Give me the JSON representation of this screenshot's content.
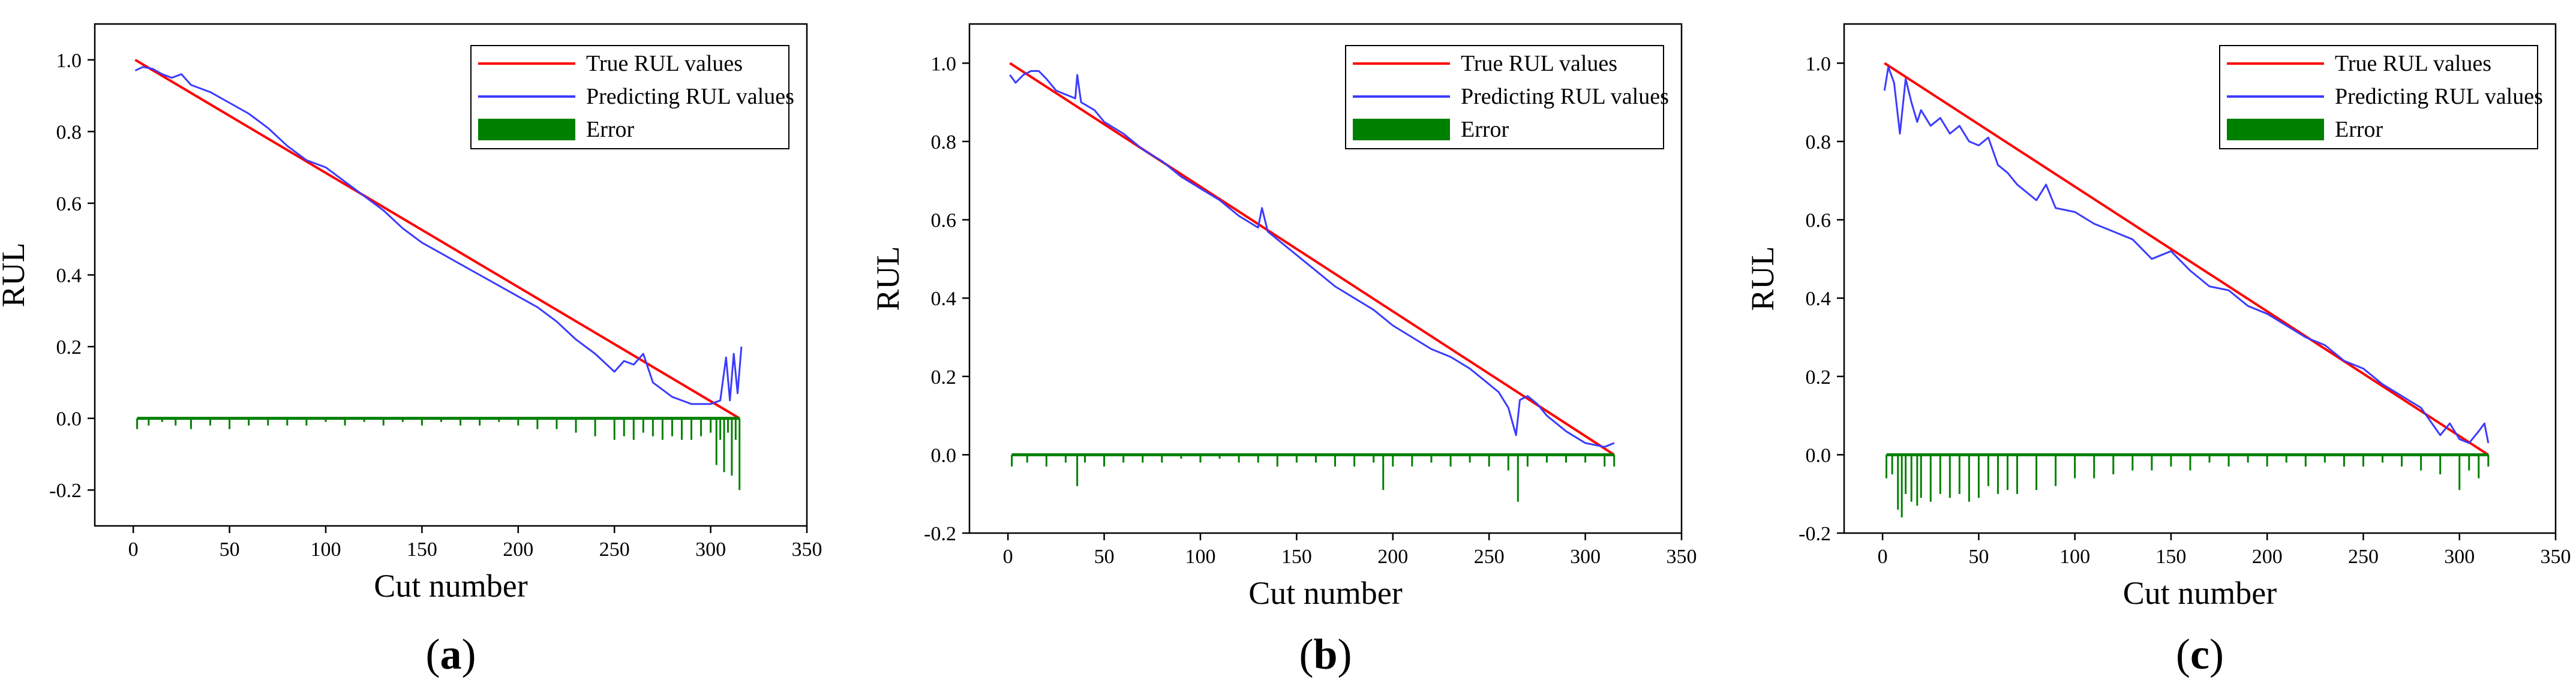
{
  "chart_data": [
    {
      "panel_label": "a",
      "type": "line",
      "xlabel": "Cut number",
      "ylabel": "RUL",
      "xlim": [
        -20,
        350
      ],
      "ylim": [
        -0.3,
        1.1
      ],
      "xticks": [
        0,
        50,
        100,
        150,
        200,
        250,
        300,
        350
      ],
      "yticks": [
        -0.2,
        0.0,
        0.2,
        0.4,
        0.6,
        0.8,
        1.0
      ],
      "grid": false,
      "legend_position": "top-right",
      "series": [
        {
          "name": "True RUL values",
          "kind": "line",
          "color": "#ff0000",
          "x": [
            1,
            315
          ],
          "y": [
            1.0,
            0.0
          ]
        },
        {
          "name": "Predicting RUL values",
          "kind": "line",
          "color": "#3b3bff",
          "x": [
            1,
            5,
            10,
            15,
            20,
            25,
            30,
            40,
            50,
            60,
            70,
            80,
            90,
            100,
            110,
            120,
            130,
            140,
            150,
            160,
            170,
            180,
            190,
            200,
            210,
            220,
            230,
            240,
            250,
            255,
            260,
            265,
            270,
            275,
            280,
            290,
            300,
            305,
            308,
            310,
            312,
            314,
            316
          ],
          "y": [
            0.97,
            0.98,
            0.975,
            0.96,
            0.95,
            0.96,
            0.93,
            0.91,
            0.88,
            0.85,
            0.81,
            0.76,
            0.72,
            0.7,
            0.66,
            0.62,
            0.58,
            0.53,
            0.49,
            0.46,
            0.43,
            0.4,
            0.37,
            0.34,
            0.31,
            0.27,
            0.22,
            0.18,
            0.13,
            0.16,
            0.15,
            0.18,
            0.1,
            0.08,
            0.06,
            0.04,
            0.04,
            0.05,
            0.17,
            0.05,
            0.18,
            0.07,
            0.2
          ]
        },
        {
          "name": "Error",
          "kind": "bar",
          "color": "#008000",
          "x": [
            2,
            8,
            15,
            22,
            30,
            40,
            50,
            60,
            70,
            80,
            90,
            100,
            110,
            120,
            130,
            140,
            150,
            160,
            170,
            180,
            190,
            200,
            210,
            220,
            230,
            240,
            250,
            255,
            260,
            265,
            270,
            275,
            280,
            285,
            290,
            295,
            300,
            303,
            305,
            307,
            309,
            311,
            313,
            315
          ],
          "y": [
            -0.03,
            -0.02,
            -0.01,
            -0.02,
            -0.03,
            -0.02,
            -0.03,
            -0.02,
            -0.02,
            -0.02,
            -0.02,
            -0.01,
            -0.02,
            -0.01,
            -0.02,
            -0.01,
            -0.02,
            -0.01,
            -0.02,
            -0.02,
            -0.01,
            -0.02,
            -0.03,
            -0.03,
            -0.04,
            -0.05,
            -0.06,
            -0.05,
            -0.06,
            -0.04,
            -0.05,
            -0.06,
            -0.05,
            -0.06,
            -0.06,
            -0.05,
            -0.04,
            -0.13,
            -0.06,
            -0.15,
            -0.04,
            -0.16,
            -0.06,
            -0.2
          ]
        }
      ]
    },
    {
      "panel_label": "b",
      "type": "line",
      "xlabel": "Cut number",
      "ylabel": "RUL",
      "xlim": [
        -20,
        350
      ],
      "ylim": [
        -0.2,
        1.1
      ],
      "xticks": [
        0,
        50,
        100,
        150,
        200,
        250,
        300,
        350
      ],
      "yticks": [
        -0.2,
        0.0,
        0.2,
        0.4,
        0.6,
        0.8,
        1.0
      ],
      "grid": false,
      "legend_position": "top-right",
      "series": [
        {
          "name": "True RUL values",
          "kind": "line",
          "color": "#ff0000",
          "x": [
            1,
            315
          ],
          "y": [
            1.0,
            0.0
          ]
        },
        {
          "name": "Predicting RUL values",
          "kind": "line",
          "color": "#3b3bff",
          "x": [
            1,
            4,
            8,
            12,
            16,
            20,
            25,
            30,
            35,
            36,
            38,
            45,
            50,
            60,
            70,
            80,
            90,
            100,
            110,
            120,
            130,
            132,
            135,
            140,
            150,
            160,
            170,
            180,
            190,
            200,
            210,
            220,
            230,
            240,
            250,
            255,
            260,
            264,
            266,
            270,
            275,
            280,
            290,
            300,
            310,
            315
          ],
          "y": [
            0.97,
            0.95,
            0.97,
            0.98,
            0.98,
            0.96,
            0.93,
            0.92,
            0.91,
            0.97,
            0.9,
            0.88,
            0.85,
            0.82,
            0.78,
            0.75,
            0.71,
            0.68,
            0.65,
            0.61,
            0.58,
            0.63,
            0.57,
            0.55,
            0.51,
            0.47,
            0.43,
            0.4,
            0.37,
            0.33,
            0.3,
            0.27,
            0.25,
            0.22,
            0.18,
            0.16,
            0.12,
            0.05,
            0.14,
            0.15,
            0.13,
            0.1,
            0.06,
            0.03,
            0.02,
            0.03
          ]
        },
        {
          "name": "Error",
          "kind": "bar",
          "color": "#008000",
          "x": [
            2,
            10,
            20,
            30,
            36,
            40,
            50,
            60,
            70,
            80,
            90,
            100,
            110,
            120,
            130,
            140,
            150,
            160,
            170,
            180,
            190,
            195,
            200,
            210,
            220,
            230,
            240,
            250,
            260,
            265,
            270,
            280,
            290,
            300,
            310,
            315
          ],
          "y": [
            -0.03,
            -0.02,
            -0.03,
            -0.02,
            -0.08,
            -0.02,
            -0.03,
            -0.02,
            -0.02,
            -0.02,
            -0.01,
            -0.02,
            -0.01,
            -0.02,
            -0.02,
            -0.03,
            -0.02,
            -0.02,
            -0.03,
            -0.03,
            -0.02,
            -0.09,
            -0.03,
            -0.03,
            -0.02,
            -0.03,
            -0.02,
            -0.03,
            -0.04,
            -0.12,
            -0.03,
            -0.02,
            -0.02,
            -0.02,
            -0.03,
            -0.03
          ]
        }
      ]
    },
    {
      "panel_label": "c",
      "type": "line",
      "xlabel": "Cut number",
      "ylabel": "RUL",
      "xlim": [
        -20,
        350
      ],
      "ylim": [
        -0.2,
        1.1
      ],
      "xticks": [
        0,
        50,
        100,
        150,
        200,
        250,
        300,
        350
      ],
      "yticks": [
        -0.2,
        0.0,
        0.2,
        0.4,
        0.6,
        0.8,
        1.0
      ],
      "grid": false,
      "legend_position": "top-right",
      "series": [
        {
          "name": "True RUL values",
          "kind": "line",
          "color": "#ff0000",
          "x": [
            1,
            315
          ],
          "y": [
            1.0,
            0.0
          ]
        },
        {
          "name": "Predicting RUL values",
          "kind": "line",
          "color": "#3b3bff",
          "x": [
            1,
            3,
            6,
            9,
            12,
            15,
            18,
            20,
            25,
            30,
            35,
            40,
            45,
            50,
            55,
            60,
            65,
            70,
            80,
            85,
            90,
            100,
            110,
            120,
            130,
            140,
            150,
            160,
            170,
            180,
            190,
            200,
            210,
            220,
            230,
            240,
            250,
            260,
            270,
            280,
            290,
            295,
            300,
            305,
            310,
            313,
            315
          ],
          "y": [
            0.93,
            0.99,
            0.95,
            0.82,
            0.96,
            0.9,
            0.85,
            0.88,
            0.84,
            0.86,
            0.82,
            0.84,
            0.8,
            0.79,
            0.81,
            0.74,
            0.72,
            0.69,
            0.65,
            0.69,
            0.63,
            0.62,
            0.59,
            0.57,
            0.55,
            0.5,
            0.52,
            0.47,
            0.43,
            0.42,
            0.38,
            0.36,
            0.33,
            0.3,
            0.28,
            0.24,
            0.22,
            0.18,
            0.15,
            0.12,
            0.05,
            0.08,
            0.04,
            0.03,
            0.06,
            0.08,
            0.03
          ]
        },
        {
          "name": "Error",
          "kind": "bar",
          "color": "#008000",
          "x": [
            2,
            5,
            8,
            10,
            12,
            15,
            18,
            20,
            25,
            30,
            35,
            40,
            45,
            50,
            55,
            60,
            65,
            70,
            80,
            90,
            100,
            110,
            120,
            130,
            140,
            150,
            160,
            170,
            180,
            190,
            200,
            210,
            220,
            230,
            240,
            250,
            260,
            270,
            280,
            290,
            300,
            305,
            310,
            315
          ],
          "y": [
            -0.06,
            -0.05,
            -0.14,
            -0.16,
            -0.1,
            -0.12,
            -0.13,
            -0.11,
            -0.12,
            -0.1,
            -0.11,
            -0.1,
            -0.12,
            -0.11,
            -0.08,
            -0.1,
            -0.09,
            -0.1,
            -0.09,
            -0.08,
            -0.06,
            -0.06,
            -0.05,
            -0.04,
            -0.04,
            -0.03,
            -0.04,
            -0.02,
            -0.03,
            -0.02,
            -0.03,
            -0.02,
            -0.03,
            -0.02,
            -0.03,
            -0.03,
            -0.02,
            -0.03,
            -0.04,
            -0.05,
            -0.09,
            -0.04,
            -0.06,
            -0.03
          ]
        }
      ]
    }
  ]
}
